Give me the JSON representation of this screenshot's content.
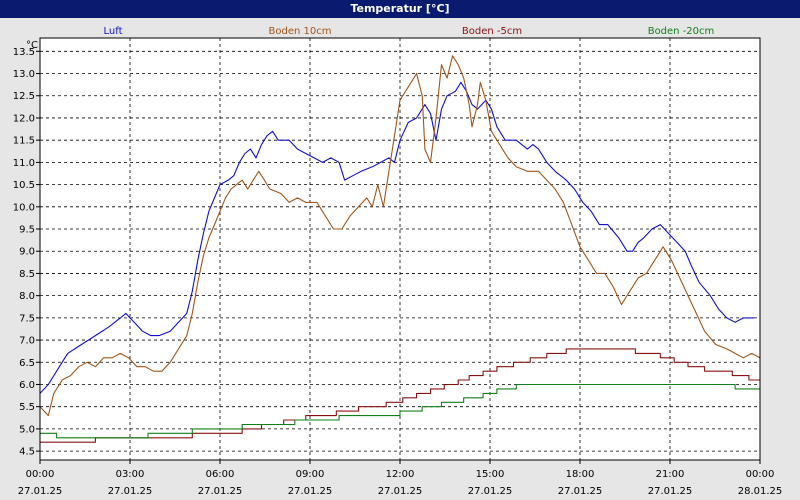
{
  "window": {
    "title": "Temperatur [°C]"
  },
  "chart_data": {
    "type": "line",
    "y_unit": "°C",
    "ylim": [
      4.3,
      13.8
    ],
    "y_ticks": [
      4.5,
      5.0,
      5.5,
      6.0,
      6.5,
      7.0,
      7.5,
      8.0,
      8.5,
      9.0,
      9.5,
      10.0,
      10.5,
      11.0,
      11.5,
      12.0,
      12.5,
      13.0,
      13.5
    ],
    "xlim_hours": [
      0,
      24
    ],
    "x_ticks": [
      {
        "h": 0,
        "time": "00:00",
        "date": "27.01.25"
      },
      {
        "h": 3,
        "time": "03:00",
        "date": "27.01.25"
      },
      {
        "h": 6,
        "time": "06:00",
        "date": "27.01.25"
      },
      {
        "h": 9,
        "time": "09:00",
        "date": "27.01.25"
      },
      {
        "h": 12,
        "time": "12:00",
        "date": "27.01.25"
      },
      {
        "h": 15,
        "time": "15:00",
        "date": "27.01.25"
      },
      {
        "h": 18,
        "time": "18:00",
        "date": "27.01.25"
      },
      {
        "h": 21,
        "time": "21:00",
        "date": "27.01.25"
      },
      {
        "h": 24,
        "time": "00:00",
        "date": "28.01.25"
      }
    ],
    "grid": true,
    "legend_position": "top",
    "series": [
      {
        "name": "Luft",
        "color": "#1010d0",
        "step": false,
        "points": [
          [
            0,
            5.8
          ],
          [
            0.3,
            6.0
          ],
          [
            0.7,
            6.4
          ],
          [
            1.0,
            6.7
          ],
          [
            1.5,
            6.9
          ],
          [
            2.0,
            7.1
          ],
          [
            2.5,
            7.3
          ],
          [
            2.9,
            7.5
          ],
          [
            3.1,
            7.6
          ],
          [
            3.4,
            7.4
          ],
          [
            3.7,
            7.2
          ],
          [
            4.0,
            7.1
          ],
          [
            4.3,
            7.1
          ],
          [
            4.7,
            7.2
          ],
          [
            5.0,
            7.4
          ],
          [
            5.3,
            7.6
          ],
          [
            5.5,
            8.1
          ],
          [
            5.7,
            8.8
          ],
          [
            5.9,
            9.4
          ],
          [
            6.1,
            9.9
          ],
          [
            6.3,
            10.2
          ],
          [
            6.5,
            10.5
          ],
          [
            6.8,
            10.6
          ],
          [
            7.0,
            10.7
          ],
          [
            7.2,
            11.0
          ],
          [
            7.4,
            11.2
          ],
          [
            7.6,
            11.3
          ],
          [
            7.8,
            11.1
          ],
          [
            8.0,
            11.4
          ],
          [
            8.2,
            11.6
          ],
          [
            8.4,
            11.7
          ],
          [
            8.6,
            11.5
          ],
          [
            9.0,
            11.5
          ],
          [
            9.3,
            11.3
          ],
          [
            9.6,
            11.2
          ],
          [
            9.9,
            11.1
          ],
          [
            10.2,
            11.0
          ],
          [
            10.5,
            11.1
          ],
          [
            10.8,
            11.0
          ],
          [
            11.0,
            10.6
          ],
          [
            11.3,
            10.7
          ],
          [
            11.6,
            10.8
          ],
          [
            12.0,
            10.9
          ],
          [
            12.3,
            11.0
          ],
          [
            12.6,
            11.1
          ],
          [
            12.8,
            11.0
          ],
          [
            13.0,
            11.5
          ],
          [
            13.3,
            11.9
          ],
          [
            13.6,
            12.0
          ],
          [
            13.9,
            12.3
          ],
          [
            14.1,
            12.1
          ],
          [
            14.3,
            11.5
          ],
          [
            14.5,
            12.2
          ],
          [
            14.7,
            12.5
          ],
          [
            15.0,
            12.6
          ],
          [
            15.2,
            12.8
          ],
          [
            15.4,
            12.6
          ],
          [
            15.6,
            12.3
          ],
          [
            15.8,
            12.2
          ],
          [
            16.1,
            12.4
          ],
          [
            16.3,
            12.2
          ],
          [
            16.5,
            11.8
          ],
          [
            16.8,
            11.5
          ],
          [
            17.2,
            11.5
          ],
          [
            17.6,
            11.3
          ],
          [
            17.8,
            11.4
          ],
          [
            18.0,
            11.3
          ],
          [
            18.3,
            11.0
          ],
          [
            18.6,
            10.8
          ],
          [
            19.0,
            10.6
          ],
          [
            19.3,
            10.4
          ],
          [
            19.6,
            10.1
          ],
          [
            19.9,
            9.9
          ],
          [
            20.2,
            9.6
          ],
          [
            20.5,
            9.6
          ],
          [
            20.9,
            9.3
          ],
          [
            21.2,
            9.0
          ],
          [
            21.4,
            9.0
          ],
          [
            21.6,
            9.2
          ],
          [
            21.8,
            9.3
          ],
          [
            22.1,
            9.5
          ],
          [
            22.4,
            9.6
          ],
          [
            22.7,
            9.4
          ],
          [
            23.0,
            9.2
          ],
          [
            23.3,
            9.0
          ],
          [
            23.5,
            8.7
          ],
          [
            23.8,
            8.3
          ],
          [
            24.2,
            8.0
          ],
          [
            24.5,
            7.7
          ],
          [
            24.8,
            7.5
          ],
          [
            25.1,
            7.4
          ],
          [
            25.4,
            7.5
          ],
          [
            25.8,
            7.5
          ]
        ]
      },
      {
        "name": "Boden 10cm",
        "color": "#a0561a",
        "step": false,
        "points": [
          [
            0,
            5.5
          ],
          [
            0.3,
            5.3
          ],
          [
            0.5,
            5.8
          ],
          [
            0.8,
            6.1
          ],
          [
            1.1,
            6.2
          ],
          [
            1.4,
            6.4
          ],
          [
            1.7,
            6.5
          ],
          [
            2.0,
            6.4
          ],
          [
            2.3,
            6.6
          ],
          [
            2.6,
            6.6
          ],
          [
            2.9,
            6.7
          ],
          [
            3.2,
            6.6
          ],
          [
            3.5,
            6.4
          ],
          [
            3.8,
            6.4
          ],
          [
            4.1,
            6.3
          ],
          [
            4.4,
            6.3
          ],
          [
            4.7,
            6.5
          ],
          [
            5.0,
            6.8
          ],
          [
            5.3,
            7.1
          ],
          [
            5.5,
            7.6
          ],
          [
            5.7,
            8.3
          ],
          [
            5.9,
            8.9
          ],
          [
            6.1,
            9.3
          ],
          [
            6.3,
            9.6
          ],
          [
            6.5,
            9.9
          ],
          [
            6.7,
            10.2
          ],
          [
            6.9,
            10.4
          ],
          [
            7.1,
            10.5
          ],
          [
            7.3,
            10.6
          ],
          [
            7.5,
            10.4
          ],
          [
            7.7,
            10.6
          ],
          [
            7.9,
            10.8
          ],
          [
            8.1,
            10.6
          ],
          [
            8.3,
            10.4
          ],
          [
            8.7,
            10.3
          ],
          [
            9.0,
            10.1
          ],
          [
            9.3,
            10.2
          ],
          [
            9.6,
            10.1
          ],
          [
            10.0,
            10.1
          ],
          [
            10.3,
            9.8
          ],
          [
            10.6,
            9.5
          ],
          [
            10.9,
            9.5
          ],
          [
            11.2,
            9.8
          ],
          [
            11.5,
            10.0
          ],
          [
            11.8,
            10.2
          ],
          [
            12.0,
            10.0
          ],
          [
            12.2,
            10.5
          ],
          [
            12.4,
            10.0
          ],
          [
            12.6,
            10.8
          ],
          [
            12.8,
            11.6
          ],
          [
            13.0,
            12.4
          ],
          [
            13.2,
            12.6
          ],
          [
            13.4,
            12.8
          ],
          [
            13.6,
            13.0
          ],
          [
            13.8,
            12.5
          ],
          [
            13.9,
            11.3
          ],
          [
            14.1,
            11.0
          ],
          [
            14.3,
            12.0
          ],
          [
            14.5,
            13.2
          ],
          [
            14.7,
            12.9
          ],
          [
            14.9,
            13.4
          ],
          [
            15.1,
            13.2
          ],
          [
            15.3,
            12.9
          ],
          [
            15.5,
            12.3
          ],
          [
            15.6,
            11.8
          ],
          [
            15.8,
            12.3
          ],
          [
            15.9,
            12.8
          ],
          [
            16.1,
            12.4
          ],
          [
            16.3,
            11.7
          ],
          [
            16.6,
            11.4
          ],
          [
            16.9,
            11.1
          ],
          [
            17.2,
            10.9
          ],
          [
            17.6,
            10.8
          ],
          [
            18.0,
            10.8
          ],
          [
            18.3,
            10.6
          ],
          [
            18.6,
            10.4
          ],
          [
            18.9,
            10.1
          ],
          [
            19.2,
            9.6
          ],
          [
            19.5,
            9.1
          ],
          [
            19.8,
            8.8
          ],
          [
            20.1,
            8.5
          ],
          [
            20.4,
            8.5
          ],
          [
            20.7,
            8.2
          ],
          [
            21.0,
            7.8
          ],
          [
            21.3,
            8.1
          ],
          [
            21.6,
            8.4
          ],
          [
            21.9,
            8.5
          ],
          [
            22.2,
            8.8
          ],
          [
            22.5,
            9.1
          ],
          [
            22.8,
            8.8
          ],
          [
            23.1,
            8.4
          ],
          [
            23.4,
            8.0
          ],
          [
            23.7,
            7.6
          ],
          [
            24.0,
            7.2
          ],
          [
            24.4,
            6.9
          ],
          [
            24.8,
            6.8
          ],
          [
            25.1,
            6.7
          ],
          [
            25.4,
            6.6
          ],
          [
            25.7,
            6.7
          ],
          [
            26.0,
            6.6
          ]
        ]
      },
      {
        "name": "Boden -5cm",
        "color": "#8a1010",
        "step": true,
        "points": [
          [
            0,
            4.7
          ],
          [
            1.5,
            4.7
          ],
          [
            2.0,
            4.8
          ],
          [
            5.5,
            4.9
          ],
          [
            7.3,
            5.0
          ],
          [
            8.0,
            5.1
          ],
          [
            8.8,
            5.2
          ],
          [
            9.6,
            5.3
          ],
          [
            10.7,
            5.4
          ],
          [
            11.5,
            5.5
          ],
          [
            12.5,
            5.6
          ],
          [
            13.1,
            5.7
          ],
          [
            13.6,
            5.8
          ],
          [
            14.1,
            5.9
          ],
          [
            14.6,
            6.0
          ],
          [
            15.1,
            6.1
          ],
          [
            15.5,
            6.2
          ],
          [
            16.0,
            6.3
          ],
          [
            16.5,
            6.4
          ],
          [
            17.1,
            6.5
          ],
          [
            17.7,
            6.6
          ],
          [
            18.3,
            6.7
          ],
          [
            19.0,
            6.8
          ],
          [
            21.5,
            6.7
          ],
          [
            22.4,
            6.6
          ],
          [
            22.9,
            6.5
          ],
          [
            23.4,
            6.4
          ],
          [
            24.0,
            6.3
          ],
          [
            25.0,
            6.2
          ],
          [
            25.6,
            6.1
          ],
          [
            26.0,
            6.1
          ]
        ]
      },
      {
        "name": "Boden -20cm",
        "color": "#10801a",
        "step": true,
        "points": [
          [
            0,
            4.9
          ],
          [
            0.6,
            4.8
          ],
          [
            3.9,
            4.9
          ],
          [
            5.5,
            5.0
          ],
          [
            6.5,
            5.0
          ],
          [
            7.3,
            5.1
          ],
          [
            8.4,
            5.1
          ],
          [
            9.2,
            5.2
          ],
          [
            10.0,
            5.2
          ],
          [
            10.8,
            5.3
          ],
          [
            12.3,
            5.3
          ],
          [
            13.0,
            5.4
          ],
          [
            13.8,
            5.5
          ],
          [
            14.5,
            5.6
          ],
          [
            15.3,
            5.7
          ],
          [
            16.0,
            5.8
          ],
          [
            16.5,
            5.9
          ],
          [
            17.2,
            6.0
          ],
          [
            22.8,
            6.0
          ],
          [
            25.1,
            5.9
          ],
          [
            26.0,
            5.9
          ]
        ]
      }
    ]
  }
}
